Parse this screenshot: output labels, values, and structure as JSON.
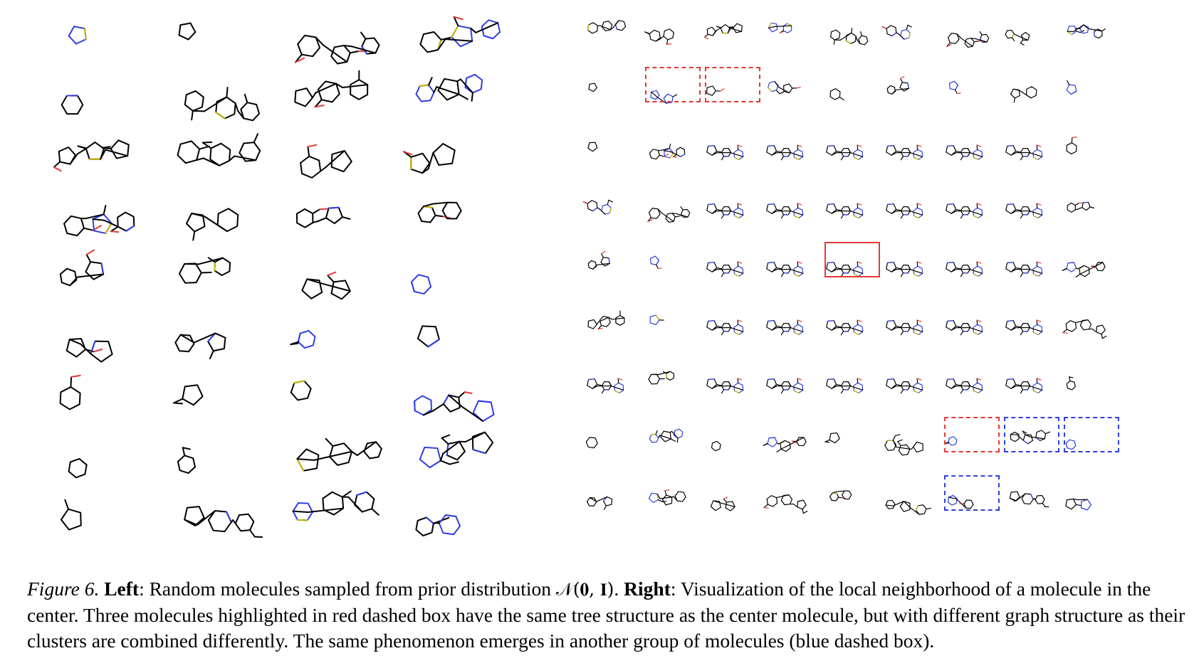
{
  "figure": {
    "caption": {
      "label": "Figure 6.",
      "left_heading": "Left",
      "left_text": ": Random molecules sampled from prior distribution ",
      "prior_symbol": "𝒩",
      "prior_args": "(𝟎, 𝐈)",
      "right_heading": "Right",
      "right_text": ": Visualization of the local neighborhood of a molecule in the center. Three molecules highlighted in red dashed box have the same tree structure as the center molecule, but with different graph structure as their clusters are combined differently. The same phenomenon emerges in another group of molecules (blue dashed box)."
    },
    "left_panel": {
      "rows": 9,
      "cols": 4,
      "atom_colors": {
        "bond": "#000000",
        "N": "#2f3fe0",
        "O": "#e53935",
        "S": "#c8b400",
        "F": "#59c94c",
        "Cl": "#3fb43f"
      }
    },
    "right_panel": {
      "rows": 9,
      "cols": 9,
      "center": {
        "row": 4,
        "col": 4
      },
      "highlight_colors": {
        "red": "#e53935",
        "blue": "#2f3fe0"
      },
      "red_dashed": [
        [
          1,
          1
        ],
        [
          1,
          2
        ],
        [
          7,
          6
        ]
      ],
      "blue_dashed": [
        [
          7,
          7
        ],
        [
          7,
          8
        ],
        [
          8,
          6
        ]
      ],
      "red_solid": [
        [
          4,
          4
        ]
      ]
    }
  }
}
